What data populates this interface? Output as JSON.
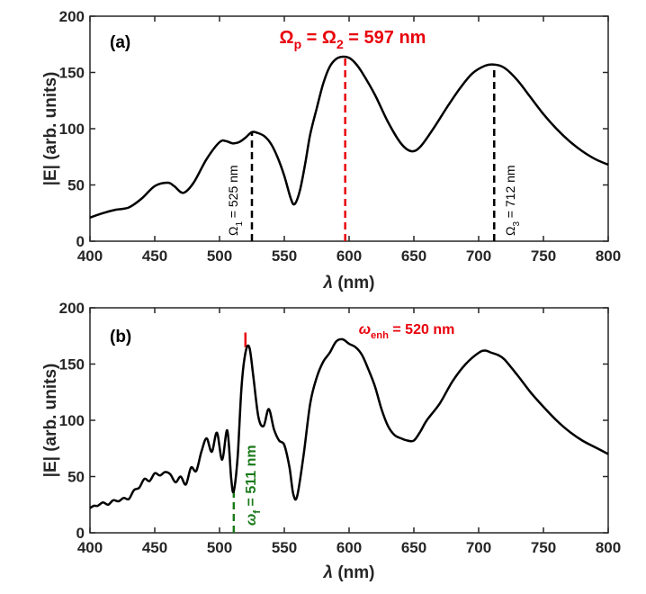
{
  "colors": {
    "curve": "#000000",
    "red": "#e8000b",
    "green": "#1a7a1a",
    "black_dash": "#000000"
  },
  "chart_data": [
    {
      "type": "line",
      "panel_label": "(a)",
      "xlabel_sym": "λ",
      "xlabel_unit": " (nm)",
      "ylabel": "|E| (arb. units)",
      "xlim": [
        400,
        800
      ],
      "ylim": [
        0,
        200
      ],
      "xticks": [
        "400",
        "450",
        "500",
        "550",
        "600",
        "650",
        "700",
        "750",
        "800"
      ],
      "yticks": [
        "0",
        "50",
        "100",
        "150",
        "200"
      ],
      "series": [
        {
          "name": "|E|",
          "x": [
            400,
            410,
            420,
            430,
            440,
            450,
            460,
            465,
            472,
            480,
            490,
            500,
            505,
            510,
            515,
            520,
            525,
            530,
            535,
            540,
            545,
            550,
            555,
            558,
            562,
            566,
            570,
            575,
            580,
            585,
            590,
            595,
            600,
            605,
            610,
            620,
            630,
            640,
            648,
            655,
            665,
            675,
            685,
            695,
            705,
            712,
            720,
            730,
            740,
            750,
            760,
            770,
            780,
            790,
            800
          ],
          "y": [
            21,
            25,
            28,
            30,
            38,
            49,
            52,
            49,
            43,
            52,
            73,
            88,
            89,
            87,
            88,
            92,
            97,
            96,
            93,
            86,
            74,
            58,
            38,
            33,
            45,
            68,
            95,
            118,
            140,
            155,
            162,
            164,
            163,
            158,
            150,
            130,
            106,
            87,
            80,
            84,
            100,
            118,
            135,
            149,
            156,
            157,
            154,
            143,
            128,
            113,
            100,
            89,
            80,
            73,
            68
          ]
        }
      ],
      "markers": [
        {
          "x": 525,
          "color": "black",
          "label_main": "Ω",
          "label_sub": "1",
          "label_rest": " = 525 nm"
        },
        {
          "x": 597,
          "color": "red"
        },
        {
          "x": 712,
          "color": "black",
          "label_main": "Ω",
          "label_sub": "3",
          "label_rest": " = 712 nm"
        }
      ],
      "headline": {
        "main1": "Ω",
        "sub1": "p",
        "mid": " = Ω",
        "sub2": "2",
        "rest": " = 597 nm"
      }
    },
    {
      "type": "line",
      "panel_label": "(b)",
      "xlabel_sym": "λ",
      "xlabel_unit": " (nm)",
      "ylabel": "|E| (arb. units)",
      "xlim": [
        400,
        800
      ],
      "ylim": [
        0,
        200
      ],
      "xticks": [
        "400",
        "450",
        "500",
        "550",
        "600",
        "650",
        "700",
        "750",
        "800"
      ],
      "yticks": [
        "0",
        "50",
        "100",
        "150",
        "200"
      ],
      "series": [
        {
          "name": "|E|",
          "x": [
            400,
            403,
            406,
            410,
            414,
            418,
            422,
            426,
            430,
            434,
            438,
            442,
            446,
            450,
            454,
            458,
            462,
            466,
            470,
            474,
            478,
            482,
            486,
            490,
            494,
            498,
            502,
            506,
            509,
            511,
            514,
            517,
            520,
            523,
            526,
            530,
            534,
            538,
            542,
            546,
            550,
            554,
            557,
            560,
            565,
            570,
            575,
            580,
            585,
            590,
            595,
            600,
            605,
            610,
            615,
            620,
            625,
            630,
            635,
            640,
            645,
            650,
            655,
            660,
            670,
            680,
            690,
            700,
            705,
            710,
            715,
            720,
            730,
            740,
            750,
            760,
            770,
            780,
            790,
            800
          ],
          "y": [
            22,
            24,
            24,
            27,
            25,
            29,
            28,
            31,
            30,
            38,
            40,
            48,
            46,
            53,
            51,
            54,
            52,
            45,
            50,
            43,
            58,
            55,
            72,
            84,
            72,
            89,
            65,
            91,
            48,
            37,
            68,
            130,
            160,
            165,
            140,
            103,
            95,
            110,
            92,
            82,
            78,
            58,
            34,
            33,
            70,
            115,
            138,
            152,
            160,
            170,
            172,
            168,
            165,
            158,
            145,
            130,
            110,
            95,
            87,
            84,
            82,
            82,
            90,
            100,
            115,
            135,
            150,
            160,
            162,
            160,
            158,
            154,
            140,
            125,
            112,
            100,
            90,
            82,
            76,
            70
          ]
        }
      ],
      "markers": [
        {
          "x": 520,
          "color": "red",
          "dash": false,
          "y_from": 165,
          "y_to": 178
        },
        {
          "x": 511,
          "color": "green",
          "dash": true,
          "y_from": 0,
          "y_to": 37
        }
      ],
      "headline": {
        "main1": "ω",
        "sub1": "enh",
        "rest": " = 520 nm"
      },
      "green_label": {
        "main": "ω",
        "sub": "f",
        "rest": " = 511 nm"
      }
    }
  ]
}
